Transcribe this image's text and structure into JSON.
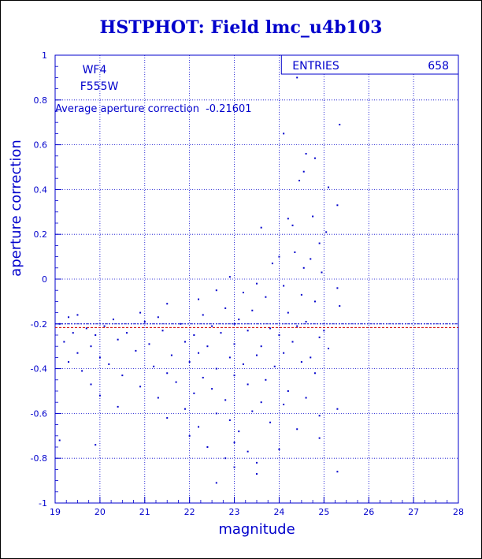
{
  "title": "HSTPHOT: Field lmc_u4b103",
  "chart_data": {
    "type": "scatter",
    "title": "HSTPHOT: Field lmc_u4b103",
    "xlabel": "magnitude",
    "ylabel": "aperture correction",
    "xlim": [
      19,
      28
    ],
    "ylim": [
      -1,
      1
    ],
    "x_ticks": [
      "19",
      "20",
      "21",
      "22",
      "23",
      "24",
      "25",
      "26",
      "27",
      "28"
    ],
    "y_ticks": [
      "-1",
      "-0.8",
      "-0.6",
      "-0.4",
      "-0.2",
      "0",
      "0.2",
      "0.4",
      "0.6",
      "0.8",
      "1"
    ],
    "grid": true,
    "annotations": {
      "chip": "WF4",
      "filter": "F555W",
      "average_label": "Average aperture correction",
      "average_value": "-0.21601"
    },
    "stats_box": {
      "label": "ENTRIES",
      "value": "658"
    },
    "reference_lines": [
      -0.2,
      -0.21601
    ],
    "points": [
      [
        24.4,
        0.9
      ],
      [
        25.35,
        0.69
      ],
      [
        24.1,
        0.65
      ],
      [
        24.6,
        0.56
      ],
      [
        24.8,
        0.54
      ],
      [
        24.55,
        0.48
      ],
      [
        24.45,
        0.44
      ],
      [
        25.1,
        0.41
      ],
      [
        25.3,
        0.33
      ],
      [
        24.2,
        0.27
      ],
      [
        24.75,
        0.28
      ],
      [
        24.3,
        0.24
      ],
      [
        23.6,
        0.23
      ],
      [
        25.05,
        0.21
      ],
      [
        24.9,
        0.16
      ],
      [
        24.35,
        0.12
      ],
      [
        24.0,
        0.1
      ],
      [
        24.7,
        0.09
      ],
      [
        23.85,
        0.07
      ],
      [
        24.55,
        0.05
      ],
      [
        24.95,
        0.03
      ],
      [
        22.9,
        0.01
      ],
      [
        23.5,
        -0.02
      ],
      [
        24.1,
        -0.03
      ],
      [
        25.3,
        -0.04
      ],
      [
        22.6,
        -0.05
      ],
      [
        23.2,
        -0.06
      ],
      [
        24.5,
        -0.07
      ],
      [
        23.7,
        -0.08
      ],
      [
        22.2,
        -0.09
      ],
      [
        24.8,
        -0.1
      ],
      [
        21.5,
        -0.11
      ],
      [
        25.35,
        -0.12
      ],
      [
        20.9,
        -0.15
      ],
      [
        22.8,
        -0.13
      ],
      [
        23.4,
        -0.14
      ],
      [
        24.2,
        -0.15
      ],
      [
        19.3,
        -0.17
      ],
      [
        19.5,
        -0.16
      ],
      [
        20.3,
        -0.18
      ],
      [
        21.3,
        -0.17
      ],
      [
        22.3,
        -0.16
      ],
      [
        23.1,
        -0.18
      ],
      [
        24.6,
        -0.19
      ],
      [
        19.1,
        -0.2
      ],
      [
        19.7,
        -0.22
      ],
      [
        20.1,
        -0.21
      ],
      [
        21.0,
        -0.19
      ],
      [
        21.8,
        -0.2
      ],
      [
        22.5,
        -0.21
      ],
      [
        23.0,
        -0.2
      ],
      [
        23.8,
        -0.22
      ],
      [
        24.4,
        -0.21
      ],
      [
        25.0,
        -0.23
      ],
      [
        19.4,
        -0.24
      ],
      [
        19.9,
        -0.25
      ],
      [
        20.6,
        -0.24
      ],
      [
        21.4,
        -0.23
      ],
      [
        22.1,
        -0.25
      ],
      [
        22.7,
        -0.24
      ],
      [
        23.3,
        -0.23
      ],
      [
        24.0,
        -0.25
      ],
      [
        24.9,
        -0.26
      ],
      [
        19.2,
        -0.28
      ],
      [
        19.8,
        -0.3
      ],
      [
        20.4,
        -0.27
      ],
      [
        21.1,
        -0.29
      ],
      [
        21.9,
        -0.28
      ],
      [
        22.4,
        -0.3
      ],
      [
        23.0,
        -0.29
      ],
      [
        23.6,
        -0.3
      ],
      [
        24.3,
        -0.28
      ],
      [
        25.1,
        -0.31
      ],
      [
        19.5,
        -0.33
      ],
      [
        20.0,
        -0.35
      ],
      [
        20.8,
        -0.32
      ],
      [
        21.6,
        -0.34
      ],
      [
        22.2,
        -0.33
      ],
      [
        22.9,
        -0.35
      ],
      [
        23.5,
        -0.34
      ],
      [
        24.1,
        -0.33
      ],
      [
        24.7,
        -0.35
      ],
      [
        19.3,
        -0.37
      ],
      [
        20.2,
        -0.38
      ],
      [
        21.2,
        -0.39
      ],
      [
        22.0,
        -0.37
      ],
      [
        22.6,
        -0.4
      ],
      [
        23.2,
        -0.38
      ],
      [
        23.9,
        -0.39
      ],
      [
        24.5,
        -0.37
      ],
      [
        19.6,
        -0.41
      ],
      [
        20.5,
        -0.43
      ],
      [
        21.5,
        -0.42
      ],
      [
        22.3,
        -0.44
      ],
      [
        23.0,
        -0.43
      ],
      [
        23.7,
        -0.45
      ],
      [
        24.8,
        -0.42
      ],
      [
        19.8,
        -0.47
      ],
      [
        20.9,
        -0.48
      ],
      [
        21.7,
        -0.46
      ],
      [
        22.5,
        -0.49
      ],
      [
        23.3,
        -0.47
      ],
      [
        24.2,
        -0.5
      ],
      [
        20.0,
        -0.52
      ],
      [
        21.3,
        -0.53
      ],
      [
        22.1,
        -0.51
      ],
      [
        22.8,
        -0.54
      ],
      [
        23.6,
        -0.55
      ],
      [
        24.6,
        -0.53
      ],
      [
        20.4,
        -0.57
      ],
      [
        21.9,
        -0.58
      ],
      [
        22.6,
        -0.6
      ],
      [
        23.4,
        -0.59
      ],
      [
        24.1,
        -0.56
      ],
      [
        25.3,
        -0.58
      ],
      [
        21.5,
        -0.62
      ],
      [
        22.9,
        -0.63
      ],
      [
        23.8,
        -0.64
      ],
      [
        24.9,
        -0.61
      ],
      [
        22.2,
        -0.66
      ],
      [
        23.1,
        -0.68
      ],
      [
        24.4,
        -0.67
      ],
      [
        19.1,
        -0.72
      ],
      [
        22.0,
        -0.7
      ],
      [
        23.0,
        -0.73
      ],
      [
        24.9,
        -0.71
      ],
      [
        19.9,
        -0.74
      ],
      [
        22.4,
        -0.75
      ],
      [
        23.3,
        -0.77
      ],
      [
        24.0,
        -0.76
      ],
      [
        22.8,
        -0.8
      ],
      [
        23.5,
        -0.82
      ],
      [
        23.0,
        -0.84
      ],
      [
        25.3,
        -0.86
      ],
      [
        23.5,
        -0.87
      ],
      [
        22.6,
        -0.91
      ]
    ]
  }
}
